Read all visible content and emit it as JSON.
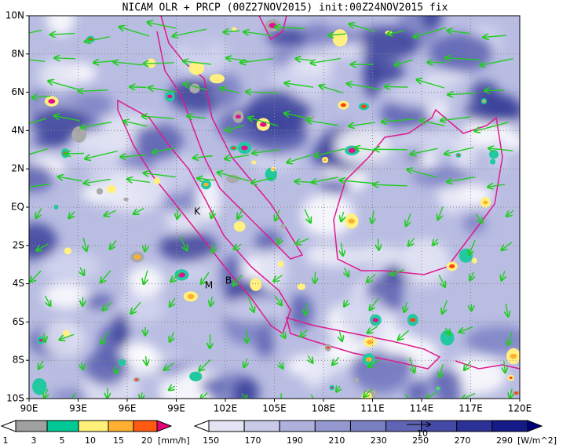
{
  "title": "NICAM OLR + PRCP (00Z27NOV2015) init:00Z24NOV2015 fix",
  "x_ticks": [
    "90E",
    "93E",
    "96E",
    "99E",
    "102E",
    "105E",
    "108E",
    "111E",
    "114E",
    "117E",
    "120E"
  ],
  "y_ticks": [
    "10N",
    "8N",
    "6N",
    "4N",
    "2N",
    "EQ",
    "2S",
    "4S",
    "6S",
    "8S",
    "10S"
  ],
  "places": [
    "K",
    "M",
    "B"
  ],
  "prcp_legend": {
    "labels": [
      "1",
      "3",
      "5",
      "10",
      "15",
      "20"
    ],
    "unit": "[mm/h]"
  },
  "olr_legend": {
    "labels": [
      "150",
      "170",
      "190",
      "210",
      "230",
      "250",
      "270",
      "290"
    ],
    "unit": "[W/m^2]"
  },
  "vector_reference": "10"
}
